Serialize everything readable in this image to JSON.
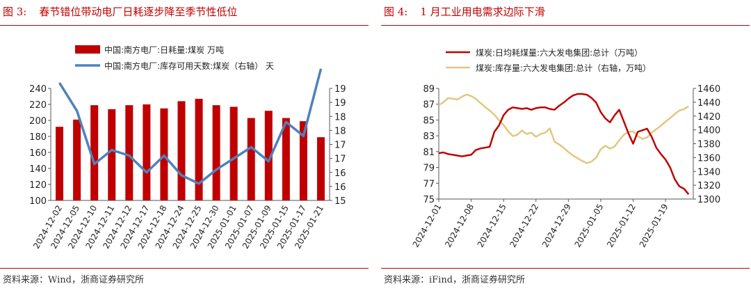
{
  "left": {
    "figure_label": "图 3:",
    "title": "春节错位带动电厂日耗逐步降至季节性低位",
    "source": "资料来源：Wind，浙商证券研究所"
  },
  "right": {
    "figure_label": "图 4:",
    "title": "1 月工业用电需求边际下滑",
    "source": "资料来源：iFind，浙商证券研究所"
  },
  "chart_data": [
    {
      "type": "bar",
      "categories": [
        "2024-12-02",
        "2024-12-05",
        "2024-12-10",
        "2024-12-11",
        "2024-12-12",
        "2024-12-17",
        "2024-12-18",
        "2024-12-24",
        "2024-12-25",
        "2024-12-30",
        "2025-01-01",
        "2025-01-07",
        "2025-01-09",
        "2025-01-15",
        "2025-01-17",
        "2025-01-21"
      ],
      "series": [
        {
          "name": "中国:南方电厂:日耗量:煤炭 万吨",
          "kind": "bar",
          "axis": "left",
          "color": "#c00000",
          "values": [
            192,
            201,
            219,
            214,
            219,
            220,
            215,
            224,
            227,
            219,
            217,
            203,
            212,
            203,
            199,
            179
          ]
        },
        {
          "name": "中国:南方电厂:库存可用天数:煤炭（右轴） 天",
          "kind": "line",
          "axis": "right",
          "color": "#4f81bd",
          "values": [
            19.2,
            18.2,
            16.3,
            16.8,
            16.6,
            16.0,
            16.6,
            15.9,
            15.6,
            16.1,
            16.5,
            16.9,
            16.4,
            17.8,
            17.3,
            19.7
          ]
        }
      ],
      "ylim": [
        100,
        240
      ],
      "yticks": [
        100,
        120,
        140,
        160,
        180,
        200,
        220,
        240
      ],
      "y2lim": [
        15,
        19
      ],
      "y2ticks": [
        15,
        15.5,
        16,
        16.5,
        17,
        17.5,
        18,
        18.5,
        19
      ],
      "y2tick_labels": [
        "15",
        "16",
        "16",
        "17",
        "17",
        "18",
        "18",
        "19",
        "19"
      ],
      "legend_placement": "top-left",
      "grid": false
    },
    {
      "type": "line",
      "x_labels": [
        "2024-12-01",
        "2024-12-08",
        "2024-12-15",
        "2024-12-22",
        "2024-12-29",
        "2025-01-05",
        "2025-01-12",
        "2025-01-19"
      ],
      "x_start": "2024-12-01",
      "x_end": "2025-01-25",
      "series": [
        {
          "name": "煤炭:日均耗煤量:六大发电集团:总计（万吨）",
          "axis": "left",
          "color": "#c00000",
          "points": [
            [
              "2024-12-01",
              80.8
            ],
            [
              "2024-12-02",
              80.9
            ],
            [
              "2024-12-03",
              80.7
            ],
            [
              "2024-12-04",
              80.6
            ],
            [
              "2024-12-05",
              80.5
            ],
            [
              "2024-12-06",
              80.4
            ],
            [
              "2024-12-07",
              80.5
            ],
            [
              "2024-12-08",
              80.6
            ],
            [
              "2024-12-09",
              81.2
            ],
            [
              "2024-12-10",
              81.4
            ],
            [
              "2024-12-11",
              81.5
            ],
            [
              "2024-12-12",
              81.6
            ],
            [
              "2024-12-13",
              83.5
            ],
            [
              "2024-12-14",
              84.3
            ],
            [
              "2024-12-15",
              85.6
            ],
            [
              "2024-12-16",
              86.3
            ],
            [
              "2024-12-17",
              86.6
            ],
            [
              "2024-12-18",
              86.5
            ],
            [
              "2024-12-19",
              86.4
            ],
            [
              "2024-12-20",
              86.5
            ],
            [
              "2024-12-21",
              86.3
            ],
            [
              "2024-12-22",
              86.5
            ],
            [
              "2024-12-23",
              86.6
            ],
            [
              "2024-12-24",
              86.6
            ],
            [
              "2024-12-25",
              86.4
            ],
            [
              "2024-12-26",
              86.3
            ],
            [
              "2024-12-27",
              86.8
            ],
            [
              "2024-12-28",
              87.2
            ],
            [
              "2024-12-29",
              87.7
            ],
            [
              "2024-12-30",
              88.1
            ],
            [
              "2024-12-31",
              88.3
            ],
            [
              "2025-01-01",
              88.3
            ],
            [
              "2025-01-02",
              88.2
            ],
            [
              "2025-01-03",
              87.8
            ],
            [
              "2025-01-04",
              87.2
            ],
            [
              "2025-01-05",
              86.0
            ],
            [
              "2025-01-06",
              85.2
            ],
            [
              "2025-01-07",
              84.7
            ],
            [
              "2025-01-08",
              85.6
            ],
            [
              "2025-01-09",
              86.3
            ],
            [
              "2025-01-10",
              84.8
            ],
            [
              "2025-01-11",
              83.3
            ],
            [
              "2025-01-12",
              82.0
            ],
            [
              "2025-01-13",
              83.5
            ],
            [
              "2025-01-14",
              83.7
            ],
            [
              "2025-01-15",
              83.9
            ],
            [
              "2025-01-16",
              82.9
            ],
            [
              "2025-01-17",
              81.5
            ],
            [
              "2025-01-18",
              80.7
            ],
            [
              "2025-01-19",
              80.0
            ],
            [
              "2025-01-20",
              79.0
            ],
            [
              "2025-01-21",
              77.5
            ],
            [
              "2025-01-22",
              76.6
            ],
            [
              "2025-01-23",
              76.3
            ],
            [
              "2025-01-24",
              75.6
            ]
          ]
        },
        {
          "name": "煤炭:库存量:六大发电集团:总计（右轴，万吨）",
          "axis": "right",
          "color": "#e2c77f",
          "points": [
            [
              "2024-12-01",
              1436
            ],
            [
              "2024-12-02",
              1440
            ],
            [
              "2024-12-03",
              1446
            ],
            [
              "2024-12-04",
              1445
            ],
            [
              "2024-12-05",
              1444
            ],
            [
              "2024-12-06",
              1448
            ],
            [
              "2024-12-07",
              1451
            ],
            [
              "2024-12-08",
              1449
            ],
            [
              "2024-12-09",
              1445
            ],
            [
              "2024-12-10",
              1439
            ],
            [
              "2024-12-11",
              1433
            ],
            [
              "2024-12-12",
              1428
            ],
            [
              "2024-12-13",
              1422
            ],
            [
              "2024-12-14",
              1414
            ],
            [
              "2024-12-15",
              1407
            ],
            [
              "2024-12-16",
              1398
            ],
            [
              "2024-12-17",
              1391
            ],
            [
              "2024-12-18",
              1393
            ],
            [
              "2024-12-19",
              1399
            ],
            [
              "2024-12-20",
              1394
            ],
            [
              "2024-12-21",
              1396
            ],
            [
              "2024-12-22",
              1390
            ],
            [
              "2024-12-23",
              1394
            ],
            [
              "2024-12-24",
              1396
            ],
            [
              "2024-12-25",
              1402
            ],
            [
              "2024-12-26",
              1383
            ],
            [
              "2024-12-27",
              1379
            ],
            [
              "2024-12-28",
              1374
            ],
            [
              "2024-12-29",
              1368
            ],
            [
              "2024-12-30",
              1363
            ],
            [
              "2024-12-31",
              1359
            ],
            [
              "2025-01-01",
              1355
            ],
            [
              "2025-01-02",
              1352
            ],
            [
              "2025-01-03",
              1354
            ],
            [
              "2025-01-04",
              1360
            ],
            [
              "2025-01-05",
              1372
            ],
            [
              "2025-01-06",
              1377
            ],
            [
              "2025-01-07",
              1373
            ],
            [
              "2025-01-08",
              1376
            ],
            [
              "2025-01-09",
              1385
            ],
            [
              "2025-01-10",
              1393
            ],
            [
              "2025-01-11",
              1397
            ],
            [
              "2025-01-12",
              1398
            ],
            [
              "2025-01-13",
              1391
            ],
            [
              "2025-01-14",
              1387
            ],
            [
              "2025-01-15",
              1389
            ],
            [
              "2025-01-16",
              1396
            ],
            [
              "2025-01-17",
              1401
            ],
            [
              "2025-01-18",
              1406
            ],
            [
              "2025-01-19",
              1412
            ],
            [
              "2025-01-20",
              1417
            ],
            [
              "2025-01-21",
              1423
            ],
            [
              "2025-01-22",
              1428
            ],
            [
              "2025-01-23",
              1430
            ],
            [
              "2025-01-24",
              1434
            ]
          ]
        }
      ],
      "ylim": [
        75,
        89
      ],
      "yticks": [
        75,
        77,
        79,
        81,
        83,
        85,
        87,
        89
      ],
      "y2lim": [
        1300,
        1460
      ],
      "y2ticks": [
        1300,
        1320,
        1340,
        1360,
        1380,
        1400,
        1420,
        1440,
        1460
      ],
      "legend_placement": "top-center",
      "grid": false
    }
  ]
}
